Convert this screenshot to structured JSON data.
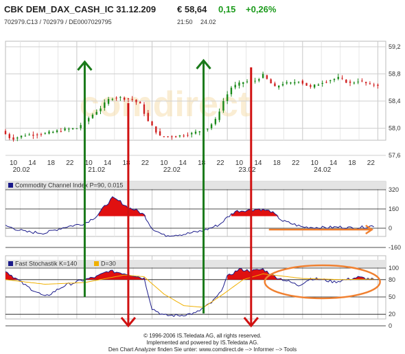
{
  "header": {
    "title": "CBK DEM_DAX_CASH_IC 31.12.209",
    "price": "€ 58,64",
    "change": "0,15",
    "change_pct": "+0,26%",
    "ids": "702979.C13  /  702979  /  DE0007029795",
    "time": "21:50",
    "date": "24.02"
  },
  "watermark": "comdirect",
  "colors": {
    "up_candle": "#1a8a1a",
    "down_candle": "#d02020",
    "indicator_line": "#1a1a8a",
    "indicator_fill": "#e01010",
    "signal_line": "#f0b000",
    "buy_arrow": "#1a7a1a",
    "sell_arrow": "#d01010",
    "annotation": "#f08030"
  },
  "chart_data": [
    {
      "type": "candlestick",
      "title": "",
      "y_ticks": [
        "59,2",
        "58,8",
        "58,4",
        "58,0",
        "57,6"
      ],
      "ylim": [
        57.6,
        59.2
      ],
      "x_hour_ticks": [
        "10",
        "14",
        "18",
        "22",
        "10",
        "14",
        "18",
        "22",
        "10",
        "14",
        "18",
        "22",
        "10",
        "14",
        "18",
        "22",
        "10",
        "14",
        "18",
        "22"
      ],
      "x_date_ticks": [
        "20.02",
        "21.02",
        "22.02",
        "23.02",
        "24.02"
      ],
      "price_path": [
        [
          0,
          57.96
        ],
        [
          5,
          57.84
        ],
        [
          12,
          57.9
        ],
        [
          22,
          57.92
        ],
        [
          32,
          57.98
        ],
        [
          38,
          58.0
        ],
        [
          44,
          58.15
        ],
        [
          50,
          58.3
        ],
        [
          55,
          58.45
        ],
        [
          60,
          58.45
        ],
        [
          66,
          58.42
        ],
        [
          70,
          58.35
        ],
        [
          74,
          58.1
        ],
        [
          80,
          57.88
        ],
        [
          88,
          57.88
        ],
        [
          96,
          57.92
        ],
        [
          104,
          58.0
        ],
        [
          108,
          58.12
        ],
        [
          112,
          58.4
        ],
        [
          116,
          58.6
        ],
        [
          122,
          58.68
        ],
        [
          128,
          58.7
        ],
        [
          132,
          58.78
        ],
        [
          134,
          58.72
        ],
        [
          138,
          58.6
        ],
        [
          142,
          58.66
        ],
        [
          146,
          58.66
        ],
        [
          150,
          58.7
        ],
        [
          156,
          58.6
        ],
        [
          162,
          58.68
        ],
        [
          170,
          58.74
        ],
        [
          176,
          58.66
        ],
        [
          180,
          58.7
        ],
        [
          186,
          58.64
        ]
      ]
    },
    {
      "type": "line",
      "title": "Commodity Channel Index P=90, 0.015",
      "legend": [
        "Commodity Channel Index P=90, 0.015"
      ],
      "y_ticks": [
        "320",
        "160",
        "0",
        "-160"
      ],
      "ylim": [
        -160,
        320
      ],
      "threshold": 100,
      "series": [
        {
          "name": "Commodity Channel Index P=90, 0.015",
          "values": [
            [
              0,
              20
            ],
            [
              10,
              -30
            ],
            [
              20,
              -40
            ],
            [
              30,
              10
            ],
            [
              40,
              40
            ],
            [
              46,
              100
            ],
            [
              50,
              180
            ],
            [
              54,
              250
            ],
            [
              58,
              220
            ],
            [
              62,
              170
            ],
            [
              66,
              150
            ],
            [
              70,
              110
            ],
            [
              74,
              0
            ],
            [
              80,
              -60
            ],
            [
              90,
              -50
            ],
            [
              100,
              -20
            ],
            [
              108,
              30
            ],
            [
              112,
              90
            ],
            [
              116,
              140
            ],
            [
              122,
              150
            ],
            [
              128,
              160
            ],
            [
              134,
              140
            ],
            [
              140,
              60
            ],
            [
              150,
              10
            ],
            [
              160,
              5
            ],
            [
              170,
              10
            ],
            [
              176,
              0
            ],
            [
              186,
              20
            ]
          ]
        }
      ]
    },
    {
      "type": "line",
      "title": "Fast Stochastik K=140  D=30",
      "legend": [
        "Fast Stochastik K=140",
        "D=30"
      ],
      "y_ticks": [
        "100",
        "80",
        "50",
        "20",
        "0"
      ],
      "ylim": [
        0,
        100
      ],
      "threshold": 80,
      "series": [
        {
          "name": "Fast Stochastik K=140",
          "values": [
            [
              0,
              95
            ],
            [
              10,
              70
            ],
            [
              20,
              50
            ],
            [
              30,
              70
            ],
            [
              40,
              80
            ],
            [
              46,
              85
            ],
            [
              52,
              95
            ],
            [
              58,
              92
            ],
            [
              64,
              88
            ],
            [
              70,
              82
            ],
            [
              74,
              30
            ],
            [
              80,
              18
            ],
            [
              88,
              18
            ],
            [
              96,
              22
            ],
            [
              104,
              40
            ],
            [
              108,
              55
            ],
            [
              112,
              85
            ],
            [
              118,
              98
            ],
            [
              124,
              95
            ],
            [
              130,
              98
            ],
            [
              136,
              85
            ],
            [
              142,
              78
            ],
            [
              148,
              70
            ],
            [
              154,
              82
            ],
            [
              160,
              80
            ],
            [
              166,
              76
            ],
            [
              172,
              80
            ],
            [
              178,
              84
            ],
            [
              186,
              80
            ]
          ]
        },
        {
          "name": "D=30",
          "values": [
            [
              0,
              80
            ],
            [
              20,
              72
            ],
            [
              40,
              75
            ],
            [
              60,
              88
            ],
            [
              70,
              85
            ],
            [
              80,
              55
            ],
            [
              90,
              35
            ],
            [
              100,
              32
            ],
            [
              110,
              55
            ],
            [
              120,
              80
            ],
            [
              130,
              90
            ],
            [
              140,
              86
            ],
            [
              150,
              82
            ],
            [
              160,
              81
            ],
            [
              170,
              80
            ],
            [
              186,
              81
            ]
          ]
        }
      ]
    }
  ],
  "footer": {
    "line1": "© 1996-2006 IS.Teledata AG, all rights reserved.",
    "line2": "Implemented and powered by IS.Teledata AG.",
    "line3": "Den Chart Analyzer finden Sie unter: www.comdirect.de --> Informer --> Tools"
  }
}
